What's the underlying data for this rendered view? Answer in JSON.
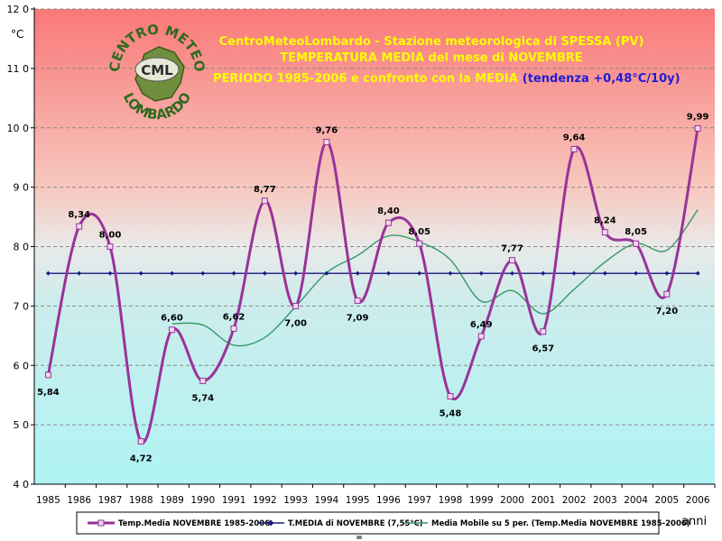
{
  "chart_data": {
    "type": "line",
    "title_lines": [
      "CentroMeteoLombardo - Stazione meteorologica di SPESSA (PV)",
      "TEMPERATURA MEDIA del mese di NOVEMBRE",
      "PERIODO 1985-2006 e confronto con la MEDIA"
    ],
    "trend_note": "(tendenza +0,48°C/10y)",
    "ylabel": "°C",
    "xlabel": "anni",
    "ylim": [
      4,
      12
    ],
    "yticks": [
      "4 0",
      "5 0",
      "6 0",
      "7 0",
      "8 0",
      "9 0",
      "10 0",
      "11 0",
      "12 0"
    ],
    "categories": [
      "1985",
      "1986",
      "1987",
      "1988",
      "1989",
      "1990",
      "1991",
      "1992",
      "1993",
      "1994",
      "1995",
      "1996",
      "1997",
      "1998",
      "1999",
      "2000",
      "2001",
      "2002",
      "2003",
      "2004",
      "2005",
      "2006"
    ],
    "series": [
      {
        "name": "Temp.Media NOVEMBRE 1985-2006",
        "color": "#993399",
        "values": [
          5.84,
          8.34,
          8.0,
          4.72,
          6.6,
          5.74,
          6.62,
          8.77,
          7.0,
          9.76,
          7.09,
          8.4,
          8.05,
          5.48,
          6.49,
          7.77,
          6.57,
          9.64,
          8.24,
          8.05,
          7.2,
          9.99
        ],
        "data_labels": [
          "5,84",
          "8,34",
          "8,00",
          "4,72",
          "6,60",
          "5,74",
          "6,62",
          "8,77",
          "7,00",
          "9,76",
          "7,09",
          "8,40",
          "8,05",
          "5,48",
          "6,49",
          "7,77",
          "6,57",
          "9,64",
          "8,24",
          "8,05",
          "7,20",
          "9,99"
        ]
      },
      {
        "name": "T.MEDIA di NOVEMBRE (7,55°C)",
        "color": "#1a1a80",
        "values": [
          7.55,
          7.55,
          7.55,
          7.55,
          7.55,
          7.55,
          7.55,
          7.55,
          7.55,
          7.55,
          7.55,
          7.55,
          7.55,
          7.55,
          7.55,
          7.55,
          7.55,
          7.55,
          7.55,
          7.55,
          7.55,
          7.55
        ]
      },
      {
        "name": "Media Mobile su 5 per. (Temp.Media NOVEMBRE 1985-2006)",
        "color": "#339966",
        "values": [
          null,
          null,
          null,
          null,
          6.7,
          6.68,
          6.34,
          6.47,
          6.99,
          7.56,
          7.85,
          8.18,
          8.08,
          7.78,
          7.08,
          7.26,
          6.87,
          7.28,
          7.74,
          8.05,
          7.94,
          8.62
        ]
      }
    ]
  },
  "logo": {
    "top_text": "CENTRO METEO",
    "bottom_text": "LOMBARDO",
    "center_text": "CML"
  },
  "legend_marker": "="
}
